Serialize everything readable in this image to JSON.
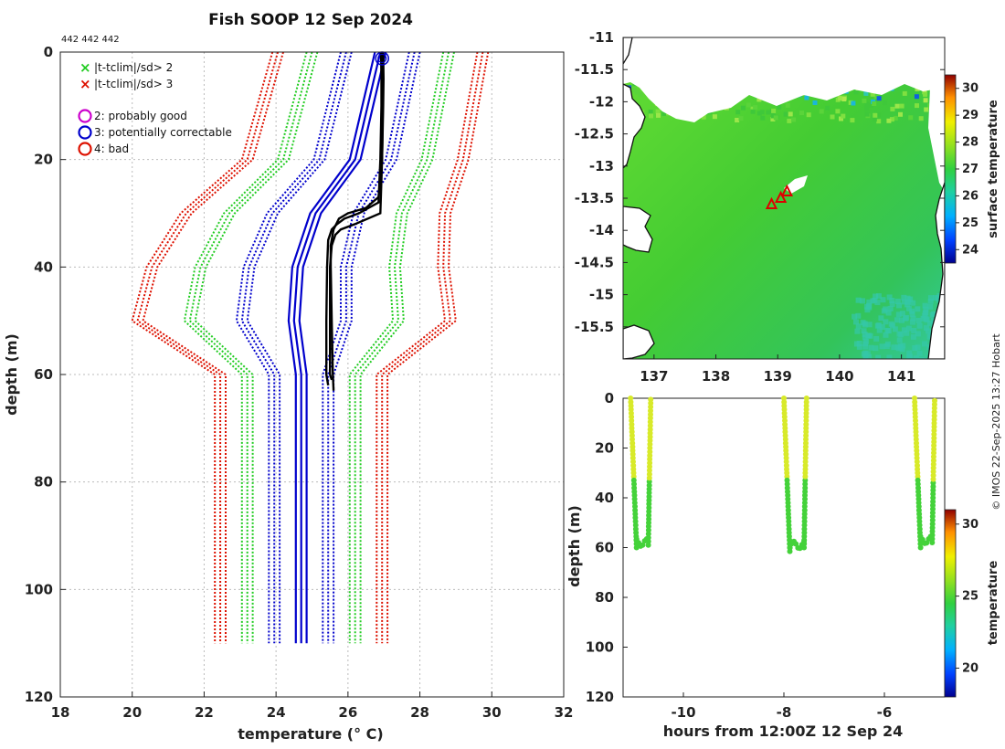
{
  "title": "Fish SOOP 12 Sep 2024",
  "ids_text": "442 442 442",
  "watermark": "© IMOS 22-Sep-2025 13:27 Hobart",
  "colors": {
    "mean": "#0000cc",
    "sd2": "#22cc22",
    "sd3": "#dd1100",
    "profile": "#000000",
    "land": "#ffffff",
    "marker": "#dd0000"
  },
  "legend": {
    "items": [
      {
        "symbol": "x",
        "color": "#22cc22",
        "label": "|t-tclim|/sd> 2"
      },
      {
        "symbol": "x",
        "color": "#dd1100",
        "label": "|t-tclim|/sd> 3"
      },
      {
        "symbol": "o",
        "color": "#cc00cc",
        "label": "2: probably good"
      },
      {
        "symbol": "o",
        "color": "#0000cc",
        "label": "3: potentially correctable"
      },
      {
        "symbol": "o",
        "color": "#dd1100",
        "label": "4: bad"
      }
    ]
  },
  "chart_data": [
    {
      "id": "profiles",
      "type": "line",
      "title": "Fish SOOP 12 Sep 2024",
      "xlabel": "temperature (° C)",
      "ylabel": "depth (m)",
      "xlim": [
        18,
        32
      ],
      "ylim": [
        120,
        0
      ],
      "xticks": [
        18,
        20,
        22,
        24,
        26,
        28,
        30,
        32
      ],
      "yticks": [
        0,
        20,
        40,
        60,
        80,
        100,
        120
      ],
      "grid": true,
      "climatology_depth": [
        0,
        20,
        30,
        40,
        50,
        60,
        110
      ],
      "climatology_mean": [
        26.9,
        26.2,
        25.1,
        24.6,
        24.5,
        24.7,
        24.7
      ],
      "climatology_sd": [
        0.95,
        1.0,
        1.2,
        1.35,
        1.45,
        0.75,
        0.75
      ],
      "climatology_offsets": [
        -0.15,
        0,
        0.15
      ],
      "series": [
        {
          "name": "profile 1",
          "depth": [
            0,
            5,
            10,
            20,
            28,
            30,
            31,
            32,
            33,
            35,
            40,
            50,
            60,
            62
          ],
          "temperature": [
            26.92,
            26.93,
            26.93,
            26.9,
            26.85,
            26.3,
            25.9,
            25.7,
            25.55,
            25.45,
            25.42,
            25.4,
            25.4,
            25.45
          ]
        },
        {
          "name": "profile 2",
          "depth": [
            0,
            5,
            10,
            20,
            30,
            32,
            33,
            34,
            36,
            40,
            50,
            60,
            61
          ],
          "temperature": [
            26.95,
            26.96,
            26.97,
            26.95,
            26.9,
            26.2,
            25.8,
            25.65,
            25.55,
            25.5,
            25.5,
            25.5,
            25.55
          ]
        },
        {
          "name": "profile 3",
          "depth": [
            0,
            5,
            10,
            20,
            27,
            29,
            30,
            31,
            33,
            36,
            40,
            50,
            60,
            63
          ],
          "temperature": [
            26.98,
            26.99,
            26.98,
            26.95,
            26.85,
            26.5,
            26.0,
            25.75,
            25.6,
            25.52,
            25.52,
            25.55,
            25.58,
            25.6
          ]
        }
      ],
      "flag_marker": {
        "temperature": 26.95,
        "depth": 0.5,
        "flag": 3
      }
    },
    {
      "id": "sst_map",
      "type": "heatmap",
      "xlim": [
        136.5,
        141.7
      ],
      "ylim": [
        -16.0,
        -11.0
      ],
      "xticks": [
        137,
        138,
        139,
        140,
        141
      ],
      "yticks": [
        -11,
        -11.5,
        -12,
        -12.5,
        -13,
        -13.5,
        -14,
        -14.5,
        -15,
        -15.5
      ],
      "colorbar": {
        "label": "surface temperature",
        "range": [
          23.5,
          30.5
        ],
        "ticks": [
          24,
          25,
          26,
          27,
          28,
          29,
          30
        ]
      },
      "drop_locations": [
        {
          "lon": 138.9,
          "lat": -13.6
        },
        {
          "lon": 139.05,
          "lat": -13.5
        },
        {
          "lon": 139.15,
          "lat": -13.4
        }
      ]
    },
    {
      "id": "time_depth",
      "type": "scatter",
      "xlabel": "hours from 12:00Z 12 Sep 24",
      "ylabel": "depth (m)",
      "xlim": [
        -11.2,
        -4.8
      ],
      "ylim": [
        120,
        0
      ],
      "xticks": [
        -10,
        -8,
        -6
      ],
      "yticks": [
        0,
        20,
        40,
        60,
        80,
        100,
        120
      ],
      "colorbar": {
        "label": "temperature",
        "range": [
          18,
          31
        ],
        "ticks": [
          20,
          25,
          30
        ]
      },
      "profiles": [
        {
          "hours_down": -11.05,
          "hours_up": -10.65,
          "max_depth": 61
        },
        {
          "hours_down": -8.0,
          "hours_up": -7.55,
          "max_depth": 62
        },
        {
          "hours_down": -5.4,
          "hours_up": -5.0,
          "max_depth": 60
        }
      ]
    }
  ]
}
